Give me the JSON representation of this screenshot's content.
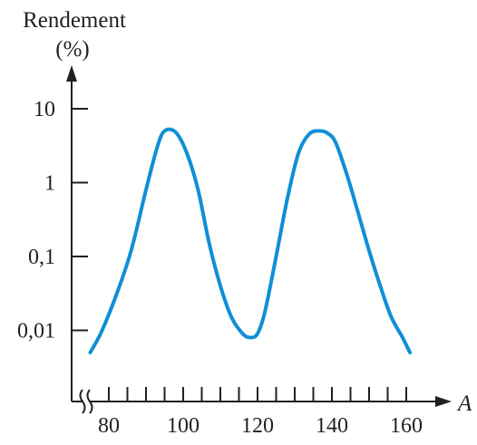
{
  "chart_data": {
    "type": "line",
    "ylabel_line1": "Rendement",
    "ylabel_line2": "(%)",
    "xlabel": "A",
    "y_scale": "log",
    "ylim": [
      0.0025,
      25
    ],
    "y_ticks": [
      {
        "value": 10,
        "label": "10"
      },
      {
        "value": 1,
        "label": "1"
      },
      {
        "value": 0.1,
        "label": "0,1"
      },
      {
        "value": 0.01,
        "label": "0,01"
      }
    ],
    "xlim": [
      72,
      170
    ],
    "x_axis_break": true,
    "x_ticks_major": [
      {
        "value": 80,
        "label": "80"
      },
      {
        "value": 100,
        "label": "100"
      },
      {
        "value": 120,
        "label": "120"
      },
      {
        "value": 140,
        "label": "140"
      },
      {
        "value": 160,
        "label": "160"
      }
    ],
    "x_ticks_minor": [
      85,
      90,
      95,
      105,
      110,
      115,
      125,
      130,
      135,
      145,
      150,
      155
    ],
    "grid": false,
    "series": [
      {
        "color": "#0f8fd6",
        "x": [
          75,
          78,
          82,
          86,
          90,
          93,
          95,
          98,
          101,
          104,
          107,
          110,
          113,
          116,
          118,
          120,
          122,
          125,
          128,
          131,
          134,
          137,
          139,
          141,
          144,
          147,
          150,
          153,
          156,
          159,
          161
        ],
        "y": [
          0.005,
          0.0095,
          0.03,
          0.12,
          0.8,
          3.0,
          5.0,
          4.8,
          2.5,
          0.8,
          0.15,
          0.04,
          0.015,
          0.009,
          0.008,
          0.009,
          0.018,
          0.1,
          0.6,
          2.5,
          4.6,
          5.0,
          4.6,
          3.5,
          1.3,
          0.4,
          0.12,
          0.04,
          0.015,
          0.008,
          0.005
        ]
      }
    ]
  }
}
